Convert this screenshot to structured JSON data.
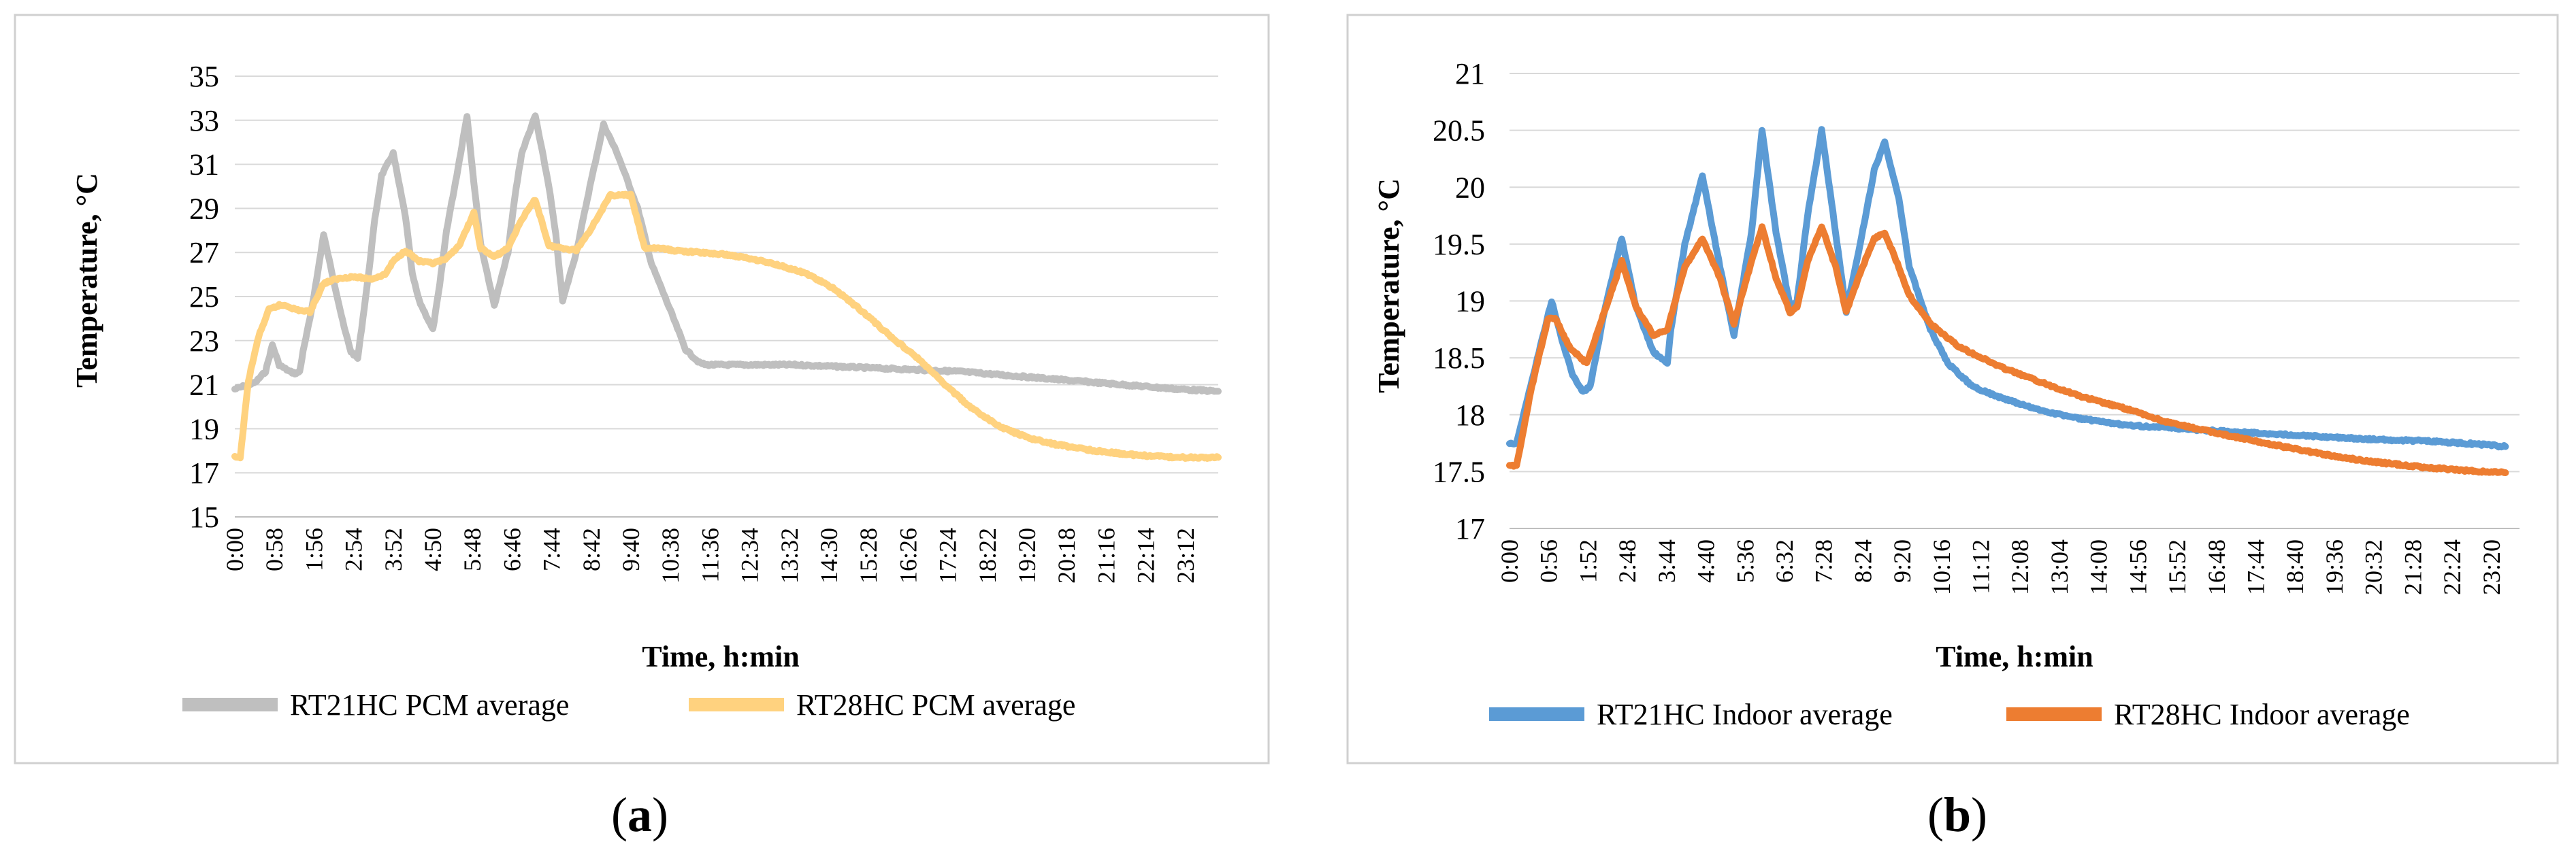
{
  "chart_data": [
    {
      "type": "line",
      "panel_label": "(a)",
      "panel_letter": "a",
      "title": "",
      "xlabel": "Time, h:min",
      "ylabel": "Temperature, °C",
      "ylim": [
        15,
        35
      ],
      "yticks": [
        15,
        17,
        19,
        21,
        23,
        25,
        27,
        29,
        31,
        33,
        35
      ],
      "xlim": [
        0,
        1440
      ],
      "xtick_minutes": [
        0,
        58,
        116,
        174,
        232,
        290,
        348,
        406,
        464,
        522,
        580,
        638,
        696,
        754,
        812,
        870,
        928,
        986,
        1044,
        1102,
        1160,
        1218,
        1276,
        1334,
        1392
      ],
      "categories": [
        "0:00",
        "0:58",
        "1:56",
        "2:54",
        "3:52",
        "4:50",
        "5:48",
        "6:46",
        "7:44",
        "8:42",
        "9:40",
        "10:38",
        "11:36",
        "12:34",
        "13:32",
        "14:30",
        "15:28",
        "16:26",
        "17:24",
        "18:22",
        "19:20",
        "20:18",
        "21:16",
        "22:14",
        "23:12"
      ],
      "grid": true,
      "legend": "bottom",
      "series": [
        {
          "name": "RT21HC PCM average",
          "color": "#bfbfbf",
          "x": [
            0,
            30,
            45,
            55,
            65,
            80,
            90,
            95,
            100,
            110,
            120,
            130,
            150,
            160,
            170,
            180,
            195,
            205,
            215,
            232,
            250,
            260,
            270,
            290,
            300,
            310,
            325,
            340,
            350,
            360,
            380,
            400,
            410,
            420,
            440,
            460,
            470,
            480,
            500,
            520,
            540,
            560,
            590,
            610,
            640,
            660,
            680,
            690,
            700,
            730,
            760,
            820,
            900,
            980,
            1060,
            1140,
            1220,
            1300,
            1380,
            1440
          ],
          "y": [
            20.8,
            21.1,
            21.6,
            22.8,
            21.9,
            21.6,
            21.5,
            21.6,
            22.5,
            24.0,
            25.8,
            27.8,
            25.0,
            23.6,
            22.5,
            22.2,
            25.8,
            28.5,
            30.5,
            31.5,
            28.6,
            26.0,
            24.8,
            23.5,
            25.5,
            28.0,
            30.5,
            33.2,
            30.2,
            27.4,
            24.6,
            27.0,
            29.5,
            31.5,
            33.2,
            30.0,
            27.8,
            24.8,
            27.0,
            30.0,
            32.8,
            31.5,
            29.0,
            26.5,
            24.2,
            22.6,
            22.0,
            21.9,
            21.9,
            21.9,
            21.9,
            21.9,
            21.8,
            21.7,
            21.6,
            21.4,
            21.2,
            21.0,
            20.8,
            20.7
          ]
        },
        {
          "name": "RT28HC PCM average",
          "color": "#ffd27f",
          "x": [
            0,
            8,
            20,
            35,
            50,
            65,
            75,
            90,
            110,
            130,
            150,
            170,
            200,
            220,
            232,
            250,
            270,
            290,
            310,
            330,
            350,
            360,
            380,
            400,
            420,
            440,
            460,
            480,
            500,
            520,
            550,
            580,
            600,
            620,
            640,
            680,
            720,
            760,
            800,
            840,
            880,
            920,
            960,
            1000,
            1040,
            1080,
            1120,
            1160,
            1200,
            1260,
            1320,
            1380,
            1440
          ],
          "y": [
            17.7,
            17.7,
            21.2,
            23.2,
            24.4,
            24.6,
            24.6,
            24.4,
            24.3,
            25.6,
            25.8,
            25.9,
            25.8,
            26.0,
            26.6,
            27.1,
            26.6,
            26.5,
            26.7,
            27.4,
            28.8,
            27.2,
            26.8,
            27.2,
            28.5,
            29.4,
            27.3,
            27.2,
            27.1,
            28.0,
            29.6,
            29.6,
            27.2,
            27.2,
            27.1,
            27.0,
            26.9,
            26.7,
            26.4,
            26.0,
            25.3,
            24.3,
            23.2,
            22.2,
            21.0,
            19.9,
            19.1,
            18.6,
            18.3,
            18.0,
            17.8,
            17.7,
            17.7
          ]
        }
      ]
    },
    {
      "type": "line",
      "panel_label": "(b)",
      "panel_letter": "b",
      "title": "",
      "xlabel": "Time, h:min",
      "ylabel": "Temperature, °C",
      "ylim": [
        17,
        21
      ],
      "yticks": [
        17,
        17.5,
        18,
        18.5,
        19,
        19.5,
        20,
        20.5,
        21
      ],
      "xlim": [
        0,
        1440
      ],
      "xtick_minutes": [
        0,
        56,
        112,
        168,
        224,
        280,
        336,
        392,
        448,
        504,
        560,
        616,
        672,
        728,
        784,
        840,
        896,
        952,
        1008,
        1064,
        1120,
        1176,
        1232,
        1288,
        1344,
        1400
      ],
      "categories": [
        "0:00",
        "0:56",
        "1:52",
        "2:48",
        "3:44",
        "4:40",
        "5:36",
        "6:32",
        "7:28",
        "8:24",
        "9:20",
        "10:16",
        "11:12",
        "12:08",
        "13:04",
        "14:00",
        "14:56",
        "15:52",
        "16:48",
        "17:44",
        "18:40",
        "19:36",
        "20:32",
        "21:28",
        "22:24",
        "23:20"
      ],
      "grid": true,
      "legend": "bottom",
      "series": [
        {
          "name": "RT21HC Indoor average",
          "color": "#5b9bd5",
          "x": [
            0,
            10,
            30,
            50,
            60,
            75,
            90,
            105,
            115,
            135,
            160,
            180,
            205,
            225,
            230,
            250,
            275,
            300,
            320,
            345,
            360,
            380,
            400,
            410,
            425,
            445,
            465,
            480,
            500,
            520,
            535,
            555,
            570,
            600,
            625,
            660,
            700,
            750,
            800,
            850,
            900,
            950,
            1000,
            1060,
            1120,
            1180,
            1240,
            1300,
            1360,
            1420
          ],
          "y": [
            17.75,
            17.75,
            18.25,
            18.75,
            19.0,
            18.65,
            18.35,
            18.2,
            18.25,
            18.9,
            19.55,
            18.95,
            18.55,
            18.45,
            18.75,
            19.5,
            20.1,
            19.3,
            18.7,
            19.6,
            20.5,
            19.6,
            18.95,
            19.0,
            19.75,
            20.5,
            19.6,
            18.9,
            19.5,
            20.15,
            20.4,
            19.9,
            19.3,
            18.75,
            18.45,
            18.25,
            18.15,
            18.05,
            17.98,
            17.93,
            17.9,
            17.88,
            17.86,
            17.84,
            17.82,
            17.8,
            17.78,
            17.77,
            17.75,
            17.72
          ]
        },
        {
          "name": "RT28HC Indoor average",
          "color": "#ed7d31",
          "x": [
            0,
            10,
            30,
            55,
            65,
            85,
            110,
            135,
            160,
            180,
            205,
            225,
            250,
            275,
            300,
            320,
            345,
            360,
            380,
            400,
            410,
            425,
            445,
            465,
            480,
            500,
            520,
            535,
            555,
            570,
            600,
            640,
            700,
            760,
            820,
            880,
            940,
            1000,
            1060,
            1120,
            1180,
            1240,
            1300,
            1360,
            1420
          ],
          "y": [
            17.55,
            17.55,
            18.2,
            18.85,
            18.85,
            18.6,
            18.45,
            18.9,
            19.35,
            18.95,
            18.7,
            18.75,
            19.3,
            19.55,
            19.2,
            18.8,
            19.35,
            19.65,
            19.2,
            18.9,
            18.95,
            19.35,
            19.65,
            19.3,
            18.9,
            19.25,
            19.55,
            19.6,
            19.3,
            19.05,
            18.8,
            18.6,
            18.42,
            18.28,
            18.15,
            18.05,
            17.93,
            17.85,
            17.77,
            17.7,
            17.63,
            17.58,
            17.54,
            17.51,
            17.49
          ]
        }
      ]
    }
  ]
}
